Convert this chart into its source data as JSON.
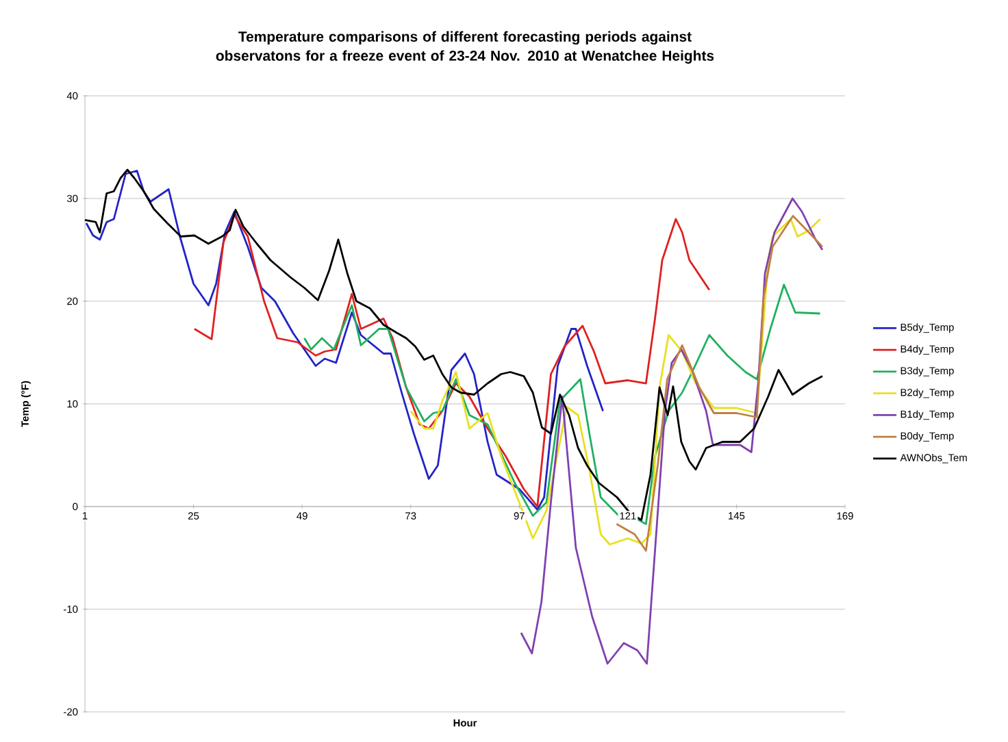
{
  "chart_data": {
    "type": "line",
    "title": "Temperature comparisons of different forecasting periods against observatons for a freeze event of 23-24 Nov. 2010 at Wenatchee Heights",
    "xlabel": "Hour",
    "ylabel": "Temp (°F)",
    "xlim": [
      1,
      169
    ],
    "ylim": [
      -20,
      40
    ],
    "xticks": [
      1,
      25,
      49,
      73,
      97,
      121,
      145,
      169
    ],
    "yticks": [
      -20,
      -10,
      0,
      10,
      20,
      30,
      40
    ],
    "grid": "y",
    "legend": "right",
    "marker": "none",
    "series": [
      {
        "name": "B5dy_Temp",
        "color": "#2323c8",
        "x": [
          1.3,
          2.8,
          4.3,
          5.8,
          7.4,
          10,
          12.5,
          14,
          15.5,
          19.5,
          22,
          25,
          28.3,
          30,
          32,
          34,
          37,
          40,
          43,
          47,
          52,
          54,
          56.5,
          60,
          62,
          67,
          68.6,
          71,
          73.7,
          77,
          79,
          82,
          85,
          87,
          90,
          92,
          97,
          101,
          102.5,
          105.5,
          108.5,
          109.5,
          112,
          115.5
        ],
        "values": [
          27.6,
          26.4,
          26,
          27.7,
          28,
          32.4,
          32.7,
          30.7,
          29.7,
          30.9,
          26.3,
          21.7,
          19.6,
          21.7,
          26.7,
          28.7,
          25.3,
          21.3,
          20,
          16.9,
          13.7,
          14.4,
          14,
          18.9,
          16.7,
          14.9,
          14.9,
          11.1,
          7.1,
          2.7,
          4,
          13.3,
          14.9,
          12.9,
          6.3,
          3.1,
          1.7,
          -0.3,
          0.9,
          13.7,
          17.3,
          17.3,
          13.7,
          9.3
        ]
      },
      {
        "name": "B4dy_Temp",
        "color": "#e02020",
        "x": [
          25.2,
          29,
          31.6,
          34,
          37,
          40.6,
          43.5,
          48,
          52,
          54,
          56.5,
          60,
          62,
          67,
          69,
          72,
          75,
          77,
          80,
          83,
          86,
          90,
          94,
          98,
          101,
          104,
          107,
          111,
          113.5,
          116,
          121,
          125,
          127,
          128.6,
          131.6,
          133,
          134.6,
          139
        ],
        "values": [
          17.3,
          16.3,
          25.7,
          28.4,
          26.3,
          20,
          16.4,
          16,
          14.7,
          15.1,
          15.3,
          20.7,
          17.3,
          18.3,
          16.4,
          11.6,
          8,
          7.6,
          9.3,
          12,
          10.7,
          7.6,
          4.9,
          1.7,
          0,
          12.9,
          15.6,
          17.6,
          15.1,
          12,
          12.3,
          12,
          18.3,
          24,
          28,
          26.7,
          24,
          21.1
        ]
      },
      {
        "name": "B3dy_Temp",
        "color": "#20b060",
        "x": [
          49.5,
          51,
          53.4,
          56,
          60,
          62,
          66,
          68,
          72,
          76,
          78,
          80,
          83,
          86,
          90,
          96,
          100,
          103,
          106,
          110.5,
          112.5,
          115,
          119,
          122.5,
          125,
          127,
          130,
          133,
          135,
          139,
          143,
          147,
          149.5,
          152.5,
          155.5,
          158,
          163.5
        ],
        "values": [
          16.4,
          15.3,
          16.4,
          15.3,
          19.6,
          15.7,
          17.3,
          17.3,
          11.6,
          8.3,
          9.1,
          9.3,
          12.4,
          8.9,
          8,
          2.3,
          -0.9,
          0.4,
          10.3,
          12.4,
          7.1,
          0.9,
          -0.9,
          -1.1,
          -1.7,
          4.9,
          9.3,
          11.1,
          12.9,
          16.7,
          14.7,
          13.1,
          12.4,
          17.3,
          21.6,
          18.9,
          18.8
        ]
      },
      {
        "name": "B2dy_Temp",
        "color": "#e8e020",
        "x": [
          73,
          76,
          78,
          80,
          83,
          86,
          90,
          93,
          97,
          100,
          103,
          107.5,
          110,
          112.5,
          115,
          117,
          121,
          124,
          126,
          128,
          130,
          133,
          136,
          140,
          145,
          149.5,
          152,
          153,
          157,
          158.5,
          161,
          163.5
        ],
        "values": [
          9.3,
          7.6,
          7.6,
          10.3,
          13.1,
          7.6,
          9.1,
          4.9,
          0.4,
          -3.1,
          -0.4,
          9.7,
          8.9,
          3.6,
          -2.7,
          -3.7,
          -3.1,
          -3.6,
          -2.7,
          11.6,
          16.7,
          15.1,
          12,
          9.6,
          9.6,
          9.1,
          24,
          26.3,
          28,
          26.3,
          26.9,
          28
        ]
      },
      {
        "name": "B1dy_Temp",
        "color": "#8040b0",
        "x": [
          97.4,
          99.8,
          101.9,
          104,
          106.5,
          109.5,
          113.1,
          116.5,
          120.1,
          123.1,
          125.2,
          127.7,
          129.2,
          130.7,
          132.8,
          135.2,
          138.3,
          139.8,
          145.8,
          148.3,
          149.8,
          151.3,
          153.4,
          157.4,
          159.5,
          162.5,
          164
        ],
        "values": [
          -12.3,
          -14.3,
          -9.3,
          0.5,
          10.7,
          -4,
          -10.7,
          -15.3,
          -13.3,
          -14,
          -15.3,
          0,
          9.3,
          14,
          15.3,
          13.3,
          9.3,
          6,
          6,
          5.3,
          12,
          22.7,
          26.7,
          30,
          28.7,
          26,
          25
        ]
      },
      {
        "name": "B0dy_Temp",
        "color": "#c08040",
        "x": [
          118.5,
          122.5,
          125,
          127.6,
          129.7,
          133,
          136.8,
          140,
          145,
          149.5,
          151,
          153,
          157.5,
          161,
          164
        ],
        "values": [
          -1.7,
          -2.7,
          -4.3,
          4,
          12.4,
          15.7,
          11.6,
          9.1,
          9.1,
          8.7,
          20.4,
          25.3,
          28.3,
          26.7,
          25.3
        ]
      },
      {
        "name": "AWNObs_Tem",
        "color": "#000000",
        "x": [
          1,
          3.4,
          4.3,
          5.8,
          7.4,
          8.9,
          10.4,
          11.9,
          14,
          16.2,
          19.2,
          22.2,
          25.2,
          28.3,
          31.3,
          33,
          34.3,
          36,
          39,
          42,
          46.5,
          49.5,
          52.5,
          55,
          57,
          59,
          61,
          64,
          67,
          70,
          72,
          74,
          76,
          78,
          80,
          82,
          84,
          87,
          90,
          93,
          95,
          98,
          100,
          102,
          104,
          106,
          108,
          110,
          112,
          114.6,
          118.6,
          121.6,
          124,
          126,
          128,
          129.8,
          131,
          132.8,
          134.6,
          136,
          138.3,
          141.9,
          145.8,
          148.9,
          152,
          154.3,
          157.4,
          161,
          164
        ],
        "values": [
          27.9,
          27.7,
          26.7,
          30.5,
          30.7,
          32,
          32.8,
          32,
          30.7,
          29,
          27.6,
          26.3,
          26.4,
          25.6,
          26.3,
          26.9,
          28.9,
          27.3,
          25.6,
          24,
          22.3,
          21.3,
          20.1,
          23,
          26,
          22.7,
          20,
          19.3,
          17.7,
          16.9,
          16.4,
          15.6,
          14.3,
          14.7,
          12.9,
          11.6,
          11.1,
          10.9,
          12,
          12.9,
          13.1,
          12.7,
          11.1,
          7.7,
          7.1,
          10.9,
          8.9,
          5.7,
          4,
          2.3,
          0.9,
          -0.7,
          -1.3,
          3.1,
          11.6,
          8.9,
          11.7,
          6.3,
          4.4,
          3.6,
          5.7,
          6.3,
          6.3,
          7.6,
          10.7,
          13.3,
          10.9,
          12,
          12.7
        ]
      }
    ]
  }
}
